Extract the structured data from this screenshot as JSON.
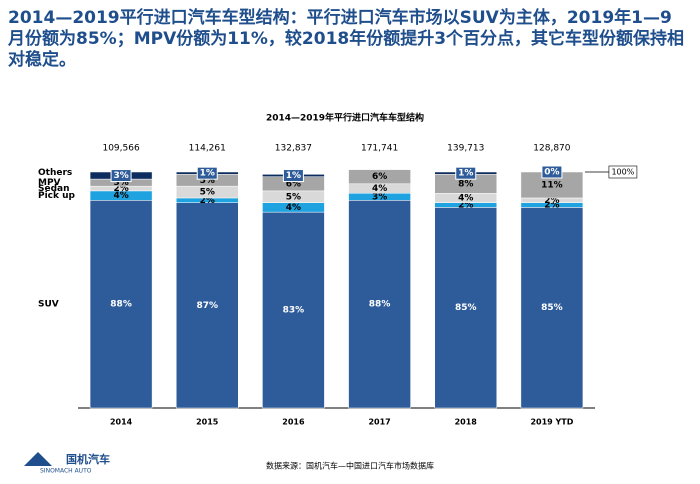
{
  "header": {
    "title": "2014—2019平行进口汽车车型结构：平行进口汽车市场以SUV为主体，2019年1—9月份额为85%；MPV份额为11%，较2018年份额提升3个百分点，其它车型份额保持相对稳定。"
  },
  "chart_data": {
    "type": "stacked_bar",
    "title": "2014—2019年平行进口汽车车型结构",
    "categories": [
      "2014",
      "2015",
      "2016",
      "2017",
      "2018",
      "2019 YTD"
    ],
    "ylim": [
      0,
      100
    ],
    "series": [
      {
        "name": "SUV",
        "color": "#2e5c9a",
        "values": [
          88,
          87,
          83,
          88,
          85,
          85
        ],
        "value_labels": [
          "88%",
          "87%",
          "83%",
          "88%",
          "85%",
          "85%"
        ]
      },
      {
        "name": "Pick up",
        "color": "#1fa3e0",
        "values": [
          4,
          2,
          4,
          3,
          2,
          2
        ],
        "value_labels": [
          "4%",
          "2%",
          "4%",
          "3%",
          "2%",
          "2%"
        ]
      },
      {
        "name": "Sedan",
        "color": "#d9d9d9",
        "values": [
          2,
          5,
          5,
          4,
          4,
          2
        ],
        "value_labels": [
          "2%",
          "5%",
          "5%",
          "4%",
          "4%",
          "2%"
        ]
      },
      {
        "name": "MPV",
        "color": "#a6a6a6",
        "values": [
          3,
          5,
          6,
          6,
          8,
          11
        ],
        "value_labels": [
          "3%",
          "5%",
          "6%",
          "6%",
          "8%",
          "11%"
        ]
      },
      {
        "name": "Others",
        "color": "#0d2d5e",
        "values": [
          3,
          1,
          1,
          null,
          1,
          0
        ],
        "value_labels": [
          "3%",
          "1%",
          "1%",
          null,
          "1%",
          "0%"
        ]
      }
    ],
    "totals": {
      "values": [
        109566,
        114261,
        132837,
        171741,
        139713,
        128870
      ],
      "value_labels": [
        "109,566",
        "114,261",
        "132,837",
        "171,741",
        "139,713",
        "128,870"
      ]
    },
    "annotation": "100%"
  },
  "footer": {
    "source": "数据来源：国机汽车—中国进口汽车市场数据库",
    "logo_cn": "国机汽车",
    "logo_en": "SINOMACH AUTO"
  }
}
